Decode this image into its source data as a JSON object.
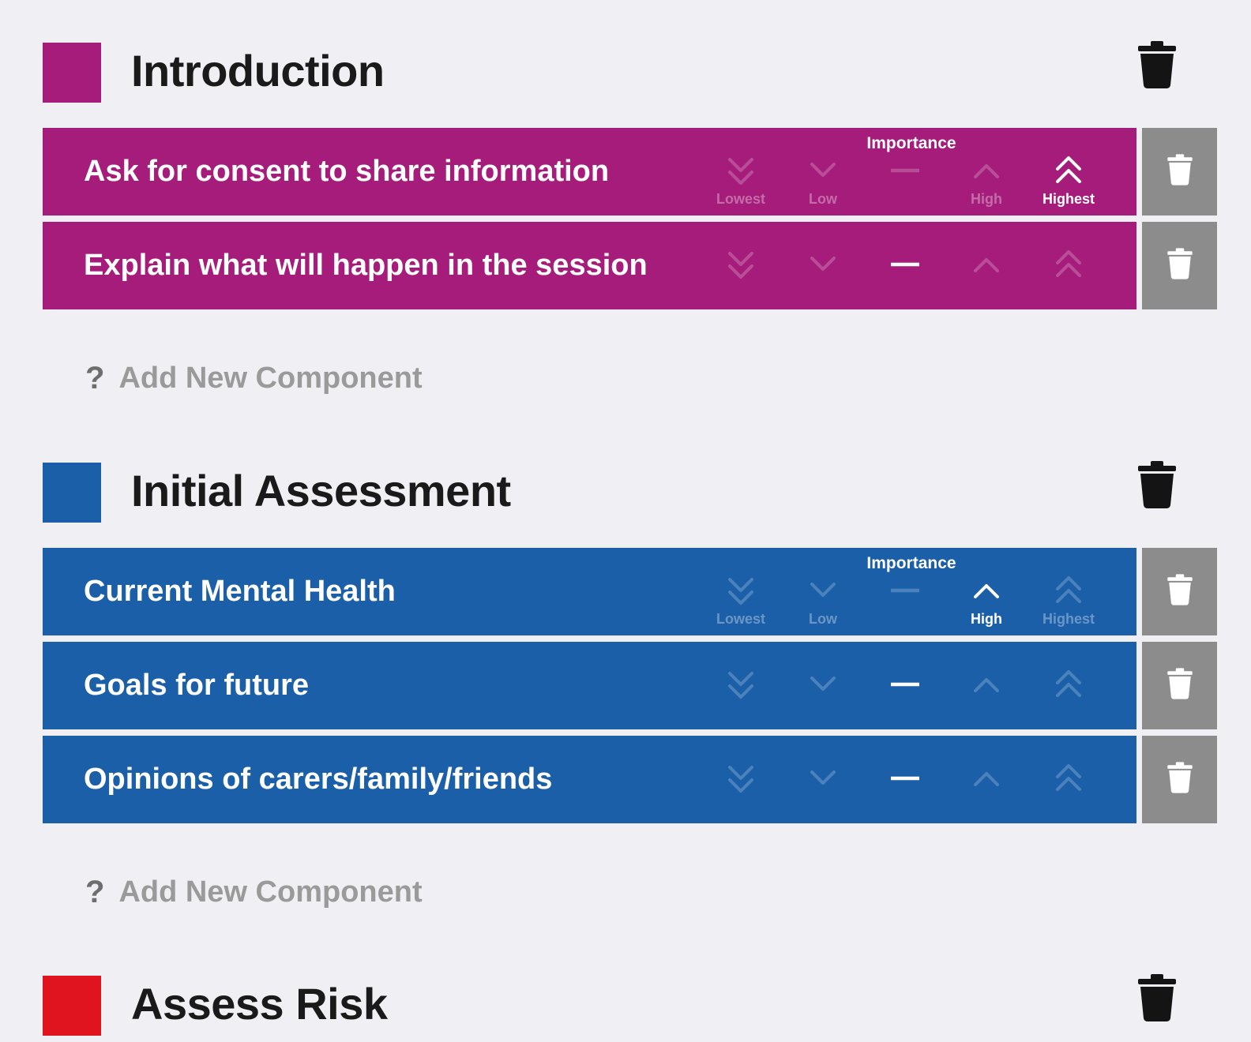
{
  "importance_levels": [
    "Lowest",
    "Low",
    "Medium",
    "High",
    "Highest"
  ],
  "importance_header": "Importance",
  "add_component_label": "Add New Component",
  "add_component_icon": "?",
  "sections": [
    {
      "title": "Introduction",
      "color": "#a51c7b",
      "components": [
        {
          "label": "Ask for consent to share information",
          "selected": "Highest",
          "expanded": true
        },
        {
          "label": "Explain what will happen in the session",
          "selected": "Medium",
          "expanded": false
        }
      ],
      "show_add": true
    },
    {
      "title": "Initial Assessment",
      "color": "#1a5fa8",
      "components": [
        {
          "label": "Current Mental Health",
          "selected": "High",
          "expanded": true
        },
        {
          "label": "Goals for future",
          "selected": "Medium",
          "expanded": false
        },
        {
          "label": "Opinions of carers/family/friends",
          "selected": "Medium",
          "expanded": false
        }
      ],
      "show_add": true
    },
    {
      "title": "Assess Risk",
      "color": "#e0141e",
      "components": [],
      "show_add": false
    }
  ]
}
